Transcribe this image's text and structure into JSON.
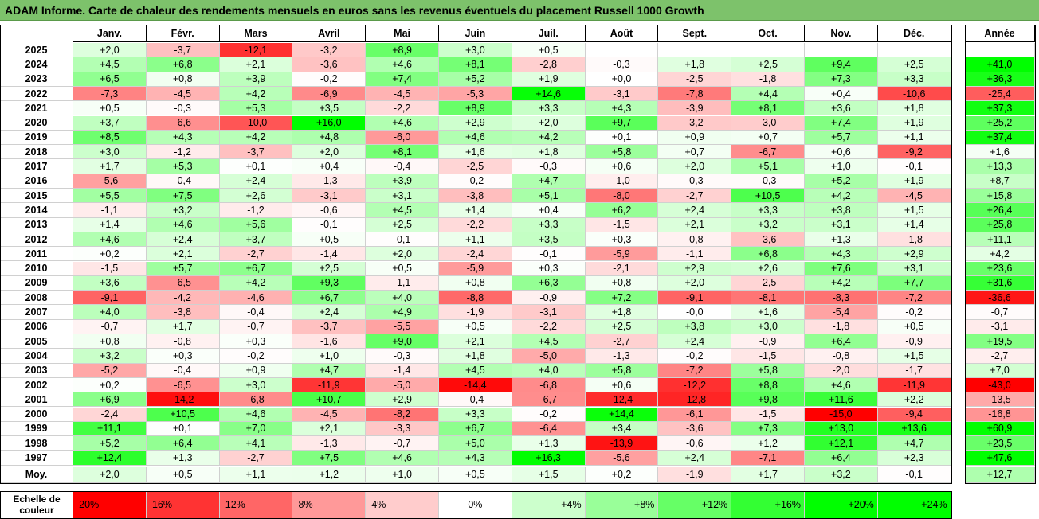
{
  "title": "ADAM Informe. Carte de chaleur des rendements mensuels en euros sans les revenus éventuels du placement Russell 1000 Growth",
  "colors": {
    "title_bg": "#7dc26b",
    "negative_max": "#ff0000",
    "positive_max": "#00ff00",
    "zero": "#ffffff"
  },
  "chart_data": {
    "type": "heatmap",
    "title": "ADAM Informe. Carte de chaleur des rendements mensuels en euros sans les revenus éventuels du placement Russell 1000 Growth",
    "columns": [
      "Janv.",
      "Févr.",
      "Mars",
      "Avril",
      "Mai",
      "Juin",
      "Juil.",
      "Août",
      "Sept.",
      "Oct.",
      "Nov.",
      "Déc."
    ],
    "year_column_label": "Année",
    "rows": [
      {
        "year": "2025",
        "values": [
          "+2,0",
          "-3,7",
          "-12,1",
          "-3,2",
          "+8,9",
          "+3,0",
          "+0,5",
          "",
          "",
          "",
          "",
          ""
        ],
        "annual": ""
      },
      {
        "year": "2024",
        "values": [
          "+4,5",
          "+6,8",
          "+2,1",
          "-3,6",
          "+4,6",
          "+8,1",
          "-2,8",
          "-0,3",
          "+1,8",
          "+2,5",
          "+9,4",
          "+2,5"
        ],
        "annual": "+41,0"
      },
      {
        "year": "2023",
        "values": [
          "+6,5",
          "+0,8",
          "+3,9",
          "-0,2",
          "+7,4",
          "+5,2",
          "+1,9",
          "+0,0",
          "-2,5",
          "-1,8",
          "+7,3",
          "+3,3"
        ],
        "annual": "+36,3"
      },
      {
        "year": "2022",
        "values": [
          "-7,3",
          "-4,5",
          "+4,2",
          "-6,9",
          "-4,5",
          "-5,3",
          "+14,6",
          "-3,1",
          "-7,8",
          "+4,4",
          "+0,4",
          "-10,6"
        ],
        "annual": "-25,4"
      },
      {
        "year": "2021",
        "values": [
          "+0,5",
          "-0,3",
          "+5,3",
          "+3,5",
          "-2,2",
          "+8,9",
          "+3,3",
          "+4,3",
          "-3,9",
          "+8,1",
          "+3,6",
          "+1,8"
        ],
        "annual": "+37,3"
      },
      {
        "year": "2020",
        "values": [
          "+3,7",
          "-6,6",
          "-10,0",
          "+16,0",
          "+4,6",
          "+2,9",
          "+2,0",
          "+9,7",
          "-3,2",
          "-3,0",
          "+7,4",
          "+1,9"
        ],
        "annual": "+25,2"
      },
      {
        "year": "2019",
        "values": [
          "+8,5",
          "+4,3",
          "+4,2",
          "+4,8",
          "-6,0",
          "+4,6",
          "+4,2",
          "+0,1",
          "+0,9",
          "+0,7",
          "+5,7",
          "+1,1"
        ],
        "annual": "+37,4"
      },
      {
        "year": "2018",
        "values": [
          "+3,0",
          "-1,2",
          "-3,7",
          "+2,0",
          "+8,1",
          "+1,6",
          "+1,8",
          "+5,8",
          "+0,7",
          "-6,7",
          "+0,6",
          "-9,2"
        ],
        "annual": "+1,6"
      },
      {
        "year": "2017",
        "values": [
          "+1,7",
          "+5,3",
          "+0,1",
          "+0,4",
          "-0,4",
          "-2,5",
          "-0,3",
          "+0,6",
          "+2,0",
          "+5,1",
          "+1,0",
          "-0,1"
        ],
        "annual": "+13,3"
      },
      {
        "year": "2016",
        "values": [
          "-5,6",
          "-0,4",
          "+2,4",
          "-1,3",
          "+3,9",
          "-0,2",
          "+4,7",
          "-1,0",
          "-0,3",
          "-0,3",
          "+5,2",
          "+1,9"
        ],
        "annual": "+8,7"
      },
      {
        "year": "2015",
        "values": [
          "+5,5",
          "+7,5",
          "+2,6",
          "-3,1",
          "+3,1",
          "-3,8",
          "+5,1",
          "-8,0",
          "-2,7",
          "+10,5",
          "+4,2",
          "-4,5"
        ],
        "annual": "+15,8"
      },
      {
        "year": "2014",
        "values": [
          "-1,1",
          "+3,2",
          "-1,2",
          "-0,6",
          "+4,5",
          "+1,4",
          "+0,4",
          "+6,2",
          "+2,4",
          "+3,3",
          "+3,8",
          "+1,5"
        ],
        "annual": "+26,4"
      },
      {
        "year": "2013",
        "values": [
          "+1,4",
          "+4,6",
          "+5,6",
          "-0,1",
          "+2,5",
          "-2,2",
          "+3,3",
          "-1,5",
          "+2,1",
          "+3,2",
          "+3,1",
          "+1,4"
        ],
        "annual": "+25,8"
      },
      {
        "year": "2012",
        "values": [
          "+4,6",
          "+2,4",
          "+3,7",
          "+0,5",
          "-0,1",
          "+1,1",
          "+3,5",
          "+0,3",
          "-0,8",
          "-3,6",
          "+1,3",
          "-1,8"
        ],
        "annual": "+11,1"
      },
      {
        "year": "2011",
        "values": [
          "+0,2",
          "+2,1",
          "-2,7",
          "-1,4",
          "+2,0",
          "-2,4",
          "-0,1",
          "-5,9",
          "-1,1",
          "+6,8",
          "+4,3",
          "+2,9"
        ],
        "annual": "+4,2"
      },
      {
        "year": "2010",
        "values": [
          "-1,5",
          "+5,7",
          "+6,7",
          "+2,5",
          "+0,5",
          "-5,9",
          "+0,3",
          "-2,1",
          "+2,9",
          "+2,6",
          "+7,6",
          "+3,1"
        ],
        "annual": "+23,6"
      },
      {
        "year": "2009",
        "values": [
          "+3,6",
          "-6,5",
          "+4,2",
          "+9,3",
          "-1,1",
          "+0,8",
          "+6,3",
          "+0,8",
          "+2,0",
          "-2,5",
          "+4,2",
          "+7,7"
        ],
        "annual": "+31,6"
      },
      {
        "year": "2008",
        "values": [
          "-9,1",
          "-4,2",
          "-4,6",
          "+6,7",
          "+4,0",
          "-8,8",
          "-0,9",
          "+7,2",
          "-9,1",
          "-8,1",
          "-8,3",
          "-7,2"
        ],
        "annual": "-36,6"
      },
      {
        "year": "2007",
        "values": [
          "+4,0",
          "-3,8",
          "-0,4",
          "+2,4",
          "+4,9",
          "-1,9",
          "-3,1",
          "+1,8",
          "-0,0",
          "+1,6",
          "-5,4",
          "-0,2"
        ],
        "annual": "-0,7"
      },
      {
        "year": "2006",
        "values": [
          "-0,7",
          "+1,7",
          "-0,7",
          "-3,7",
          "-5,5",
          "+0,5",
          "-2,2",
          "+2,5",
          "+3,8",
          "+3,0",
          "-1,8",
          "+0,5"
        ],
        "annual": "-3,1"
      },
      {
        "year": "2005",
        "values": [
          "+0,8",
          "-0,8",
          "+0,3",
          "-1,6",
          "+9,0",
          "+2,1",
          "+4,5",
          "-2,7",
          "+2,4",
          "-0,9",
          "+6,4",
          "-0,9"
        ],
        "annual": "+19,5"
      },
      {
        "year": "2004",
        "values": [
          "+3,2",
          "+0,3",
          "-0,2",
          "+1,0",
          "-0,3",
          "+1,8",
          "-5,0",
          "-1,3",
          "-0,2",
          "-1,5",
          "-0,8",
          "+1,5"
        ],
        "annual": "-2,7"
      },
      {
        "year": "2003",
        "values": [
          "-5,2",
          "-0,4",
          "+0,9",
          "+4,7",
          "-1,4",
          "+4,5",
          "+4,0",
          "+5,8",
          "-7,2",
          "+5,8",
          "-2,0",
          "-1,7"
        ],
        "annual": "+7,0"
      },
      {
        "year": "2002",
        "values": [
          "+0,2",
          "-6,5",
          "+3,0",
          "-11,9",
          "-5,0",
          "-14,4",
          "-6,8",
          "+0,6",
          "-12,2",
          "+8,8",
          "+4,6",
          "-11,9"
        ],
        "annual": "-43,0"
      },
      {
        "year": "2001",
        "values": [
          "+6,9",
          "-14,2",
          "-6,8",
          "+10,7",
          "+2,9",
          "-0,4",
          "-6,7",
          "-12,4",
          "-12,8",
          "+9,8",
          "+11,6",
          "+2,2"
        ],
        "annual": "-13,5"
      },
      {
        "year": "2000",
        "values": [
          "-2,4",
          "+10,5",
          "+4,6",
          "-4,5",
          "-8,2",
          "+3,3",
          "-0,2",
          "+14,4",
          "-6,1",
          "-1,5",
          "-15,0",
          "-9,4"
        ],
        "annual": "-16,8"
      },
      {
        "year": "1999",
        "values": [
          "+11,1",
          "+0,1",
          "+7,0",
          "+2,1",
          "-3,3",
          "+6,7",
          "-6,4",
          "+3,4",
          "-3,6",
          "+7,3",
          "+13,0",
          "+13,6"
        ],
        "annual": "+60,9"
      },
      {
        "year": "1998",
        "values": [
          "+5,2",
          "+6,4",
          "+4,1",
          "-1,3",
          "-0,7",
          "+5,0",
          "+1,3",
          "-13,9",
          "-0,6",
          "+1,2",
          "+12,1",
          "+4,7"
        ],
        "annual": "+23,5"
      },
      {
        "year": "1997",
        "values": [
          "+12,4",
          "+1,3",
          "-2,7",
          "+7,5",
          "+4,6",
          "+4,3",
          "+16,3",
          "-5,6",
          "+2,4",
          "-7,1",
          "+6,4",
          "+2,3"
        ],
        "annual": "+47,6"
      }
    ],
    "average_row": {
      "label": "Moy.",
      "values": [
        "+2,0",
        "+0,5",
        "+1,1",
        "+1,2",
        "+1,0",
        "+0,5",
        "+1,5",
        "+0,2",
        "-1,9",
        "+1,7",
        "+3,2",
        "-0,1"
      ],
      "annual": "+12,7"
    },
    "scale": {
      "label": "Echelle de couleur",
      "stops": [
        {
          "text": "-20%",
          "value": -20,
          "color": "#ff0000"
        },
        {
          "text": "-16%",
          "value": -16,
          "color": "#ff3333"
        },
        {
          "text": "-12%",
          "value": -12,
          "color": "#ff6666"
        },
        {
          "text": "-8%",
          "value": -8,
          "color": "#ff9999"
        },
        {
          "text": "-4%",
          "value": -4,
          "color": "#ffcccc"
        },
        {
          "text": "0%",
          "value": 0,
          "color": "#ffffff"
        },
        {
          "text": "+4%",
          "value": 4,
          "color": "#ccffcc"
        },
        {
          "text": "+8%",
          "value": 8,
          "color": "#99ff99"
        },
        {
          "text": "+12%",
          "value": 12,
          "color": "#66ff66"
        },
        {
          "text": "+16%",
          "value": 16,
          "color": "#33ff33"
        },
        {
          "text": "+20%",
          "value": 20,
          "color": "#00ff00"
        },
        {
          "text": "+24%",
          "value": 24,
          "color": "#00ff00"
        }
      ]
    }
  }
}
